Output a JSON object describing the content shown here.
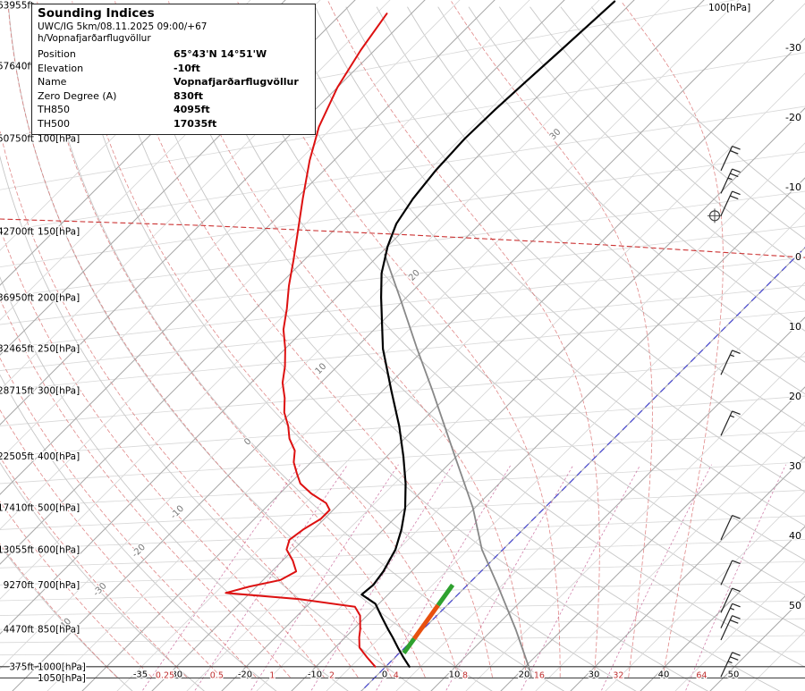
{
  "info_box": {
    "title": "Sounding Indices",
    "model_line": "UWC/IG 5km/08.11.2025 09:00/+67 h/Vopnafjarðarflugvöllur",
    "rows": [
      {
        "label": "Position",
        "value": "65°43'N 14°51'W"
      },
      {
        "label": "Elevation",
        "value": "-10ft"
      },
      {
        "label": "Name",
        "value": "Vopnafjarðarflugvöllur"
      },
      {
        "label": "Zero Degree (A)",
        "value": "830ft"
      },
      {
        "label": "TH850",
        "value": "4095ft"
      },
      {
        "label": "TH500",
        "value": "17035ft"
      }
    ]
  },
  "axes": {
    "top_right_label": "100[hPa]",
    "left_levels": [
      {
        "p": 56,
        "ft": "63955ft",
        "hpa": ""
      },
      {
        "p": 73,
        "ft": "57640ft",
        "hpa": ""
      },
      {
        "p": 100,
        "ft": "50750ft",
        "hpa": "100[hPa]"
      },
      {
        "p": 150,
        "ft": "42700ft",
        "hpa": "150[hPa]"
      },
      {
        "p": 200,
        "ft": "36950ft",
        "hpa": "200[hPa]"
      },
      {
        "p": 250,
        "ft": "32465ft",
        "hpa": "250[hPa]"
      },
      {
        "p": 300,
        "ft": "28715ft",
        "hpa": "300[hPa]"
      },
      {
        "p": 400,
        "ft": "22505ft",
        "hpa": "400[hPa]"
      },
      {
        "p": 500,
        "ft": "17410ft",
        "hpa": "500[hPa]"
      },
      {
        "p": 600,
        "ft": "13055ft",
        "hpa": "600[hPa]"
      },
      {
        "p": 700,
        "ft": "9270ft",
        "hpa": "700[hPa]"
      },
      {
        "p": 850,
        "ft": "4470ft",
        "hpa": "850[hPa]"
      },
      {
        "p": 1000,
        "ft": "375ft",
        "hpa": "1000[hPa]"
      },
      {
        "p": 1050,
        "ft": "",
        "hpa": "1050[hPa]"
      }
    ],
    "right_temps": [
      -30,
      -20,
      -10,
      0,
      10,
      20,
      30,
      40,
      50
    ],
    "bottom_temps": [
      -35,
      -30,
      -20,
      -10,
      0,
      10,
      20,
      30,
      40,
      50
    ],
    "mixing_ratios": [
      0.25,
      0.5,
      1,
      2,
      4,
      8,
      16,
      32,
      64
    ]
  },
  "chart_data": {
    "type": "skewt-sounding",
    "title": "Sounding Vopnafjarðarflugvöllur UWC/IG 5km 08.11.2025 09:00 +67h",
    "pressure_hpa_range": [
      55,
      1050
    ],
    "temp_c_at_1000hpa_range": [
      -35,
      50
    ],
    "isotherm_step_c": 5,
    "isobar_levels_hpa": [
      100,
      125,
      150,
      175,
      200,
      225,
      250,
      275,
      300,
      350,
      400,
      450,
      500,
      550,
      600,
      650,
      700,
      750,
      800,
      850,
      900,
      950
    ],
    "dry_adiabat_theta_c": [
      -40,
      -30,
      -20,
      -10,
      0,
      10,
      20,
      30,
      40,
      50,
      60,
      70,
      80,
      90,
      100,
      110,
      120,
      130,
      140,
      150,
      160,
      170,
      180,
      190,
      200
    ],
    "moist_adiabat_thetaw_c": [
      -40,
      -35,
      -30,
      -25,
      -20,
      -15,
      -10,
      -5,
      0,
      5,
      10,
      15,
      20,
      25,
      30,
      35,
      40
    ],
    "diagonal_labels": [
      {
        "p": 840,
        "v": -40
      },
      {
        "p": 720,
        "v": -30
      },
      {
        "p": 608,
        "v": -20
      },
      {
        "p": 514,
        "v": -10
      },
      {
        "p": 378,
        "v": 0
      },
      {
        "p": 275,
        "v": 10
      },
      {
        "p": 183,
        "v": 20
      },
      {
        "p": 99,
        "v": 30
      }
    ],
    "zero_isotherm_c": 0,
    "temperature_profile": [
      [
        1000,
        3.4
      ],
      [
        960,
        1.2
      ],
      [
        920,
        -1.0
      ],
      [
        880,
        -3.2
      ],
      [
        850,
        -5.0
      ],
      [
        800,
        -8.0
      ],
      [
        760,
        -10.5
      ],
      [
        730,
        -13.8
      ],
      [
        700,
        -13.5
      ],
      [
        660,
        -14.0
      ],
      [
        600,
        -15.4
      ],
      [
        550,
        -17.4
      ],
      [
        500,
        -20.0
      ],
      [
        450,
        -23.4
      ],
      [
        400,
        -27.6
      ],
      [
        350,
        -32.6
      ],
      [
        300,
        -38.8
      ],
      [
        250,
        -46.0
      ],
      [
        200,
        -53.6
      ],
      [
        180,
        -57.0
      ],
      [
        160,
        -60.0
      ],
      [
        145,
        -62.0
      ],
      [
        130,
        -63.2
      ],
      [
        115,
        -64.0
      ],
      [
        100,
        -64.4
      ],
      [
        88,
        -64.2
      ],
      [
        78,
        -63.8
      ],
      [
        68,
        -63.3
      ],
      [
        60,
        -62.9
      ],
      [
        55,
        -62.6
      ]
    ],
    "dewpoint_profile": [
      [
        1000,
        -1.5
      ],
      [
        960,
        -4.0
      ],
      [
        920,
        -6.5
      ],
      [
        880,
        -8.0
      ],
      [
        850,
        -9.0
      ],
      [
        800,
        -11.0
      ],
      [
        770,
        -13.0
      ],
      [
        745,
        -22.0
      ],
      [
        725,
        -33.5
      ],
      [
        705,
        -31.0
      ],
      [
        685,
        -27.5
      ],
      [
        660,
        -26.5
      ],
      [
        630,
        -28.5
      ],
      [
        600,
        -31.0
      ],
      [
        575,
        -32.0
      ],
      [
        550,
        -31.5
      ],
      [
        525,
        -30.5
      ],
      [
        505,
        -30.5
      ],
      [
        490,
        -32.0
      ],
      [
        470,
        -35.5
      ],
      [
        450,
        -38.5
      ],
      [
        430,
        -40.5
      ],
      [
        410,
        -42.5
      ],
      [
        390,
        -44.0
      ],
      [
        370,
        -46.5
      ],
      [
        350,
        -48.5
      ],
      [
        330,
        -51.0
      ],
      [
        310,
        -53.0
      ],
      [
        290,
        -55.5
      ],
      [
        270,
        -57.5
      ],
      [
        250,
        -60.0
      ],
      [
        230,
        -63.0
      ],
      [
        210,
        -65.5
      ],
      [
        190,
        -68.5
      ],
      [
        170,
        -71.5
      ],
      [
        150,
        -75.0
      ],
      [
        130,
        -79.0
      ],
      [
        110,
        -83.5
      ],
      [
        95,
        -87.0
      ],
      [
        80,
        -90.0
      ],
      [
        68,
        -92.0
      ],
      [
        58,
        -93.5
      ]
    ],
    "reference_profile": [
      [
        1050,
        22.5
      ],
      [
        1000,
        20.5
      ],
      [
        850,
        13.3
      ],
      [
        700,
        4.3
      ],
      [
        600,
        -3.0
      ],
      [
        500,
        -10.3
      ],
      [
        400,
        -20.2
      ],
      [
        300,
        -32.9
      ],
      [
        250,
        -41.1
      ],
      [
        200,
        -50.9
      ],
      [
        166,
        -59.2
      ]
    ],
    "upper_dashed_line": [
      [
        142,
        -119.5
      ],
      [
        146,
        -90.0
      ],
      [
        152,
        -59.6
      ],
      [
        159,
        -29.0
      ],
      [
        168,
        1.4
      ]
    ],
    "thermal_stripe": [
      {
        "p": [
          942,
          885
        ],
        "t": [
          0.64,
          0.07
        ],
        "color": "#2fa12f"
      },
      {
        "p": [
          885,
          765
        ],
        "t": [
          0.07,
          -1.3
        ],
        "color": "#e8500f"
      },
      {
        "p": [
          765,
          700
        ],
        "t": [
          -1.3,
          -2.13
        ],
        "color": "#2fa12f"
      }
    ],
    "wind_barbs": [
      {
        "hpa": 115,
        "kt": 20
      },
      {
        "hpa": 127,
        "kt": 25
      },
      {
        "hpa": 140,
        "kt": 20
      },
      {
        "hpa": 280,
        "kt": 15
      },
      {
        "hpa": 365,
        "kt": 15
      },
      {
        "hpa": 575,
        "kt": 10
      },
      {
        "hpa": 700,
        "kt": 10
      },
      {
        "hpa": 790,
        "kt": 10
      },
      {
        "hpa": 845,
        "kt": 15
      },
      {
        "hpa": 890,
        "kt": 20
      },
      {
        "hpa": 1045,
        "kt": 25
      }
    ],
    "station_marker": {
      "p": 140
    },
    "colors": {
      "temperature": "#000000",
      "dewpoint": "#dd1111",
      "reference": "#888888",
      "isotherm_major": "#a8a8a8",
      "isotherm_minor": "#d6d6d6",
      "isobar": "#d8d8d8",
      "axis_line": "#333333",
      "dry_adiabat": "#c6c6c6",
      "moist_adiabat": "#d66060",
      "mixing_ratio": "#c2558f",
      "mixing_label": "#c03030",
      "zero_line": "#4444cc",
      "upper_dashed": "#cc3333",
      "barb": "#222222",
      "diag_label": "#777777",
      "axis_text": "#000000"
    }
  }
}
